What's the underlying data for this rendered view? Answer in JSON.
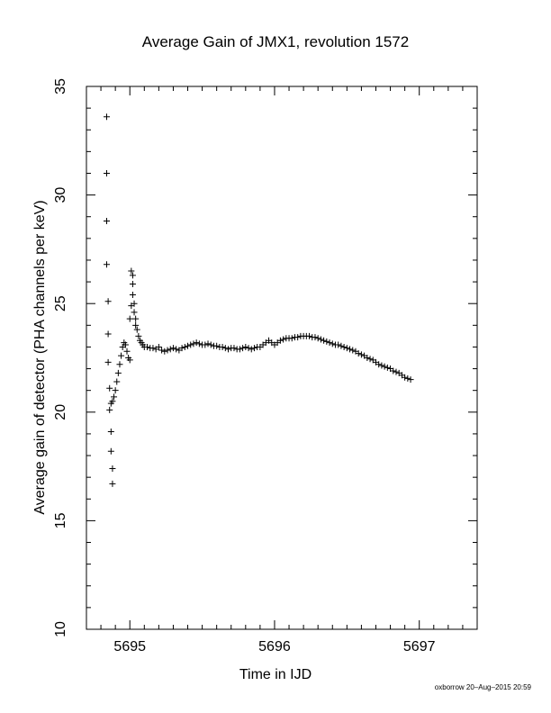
{
  "chart_data": {
    "type": "scatter",
    "title": "Average Gain of JMX1, revolution 1572",
    "xlabel": "Time in IJD",
    "ylabel": "Average gain of detector (PHA channels per keV)",
    "xlim": [
      5694.7,
      5697.4
    ],
    "ylim": [
      10,
      35
    ],
    "xticks": [
      5695,
      5696,
      5697
    ],
    "xtick_labels": [
      "5695",
      "5696",
      "5697"
    ],
    "yticks": [
      10,
      15,
      20,
      25,
      30,
      35
    ],
    "ytick_labels": [
      "10",
      "15",
      "20",
      "25",
      "30",
      "35"
    ],
    "grid": false,
    "legend": "none",
    "marker": "plus",
    "colors": {
      "marker": "#000000",
      "axes": "#000000",
      "background": "#ffffff"
    },
    "credit": "oxborrow 20–Aug–2015 20:59",
    "series": [
      {
        "x": [
          5694.84,
          5694.84,
          5694.84,
          5694.84,
          5694.85,
          5694.85,
          5694.85,
          5694.86,
          5694.86,
          5694.87,
          5694.87,
          5694.88,
          5694.88,
          5694.87,
          5694.88,
          5694.89,
          5694.9,
          5694.91,
          5694.92,
          5694.93,
          5694.94,
          5694.95,
          5694.96,
          5694.97,
          5694.98,
          5694.99,
          5695.0,
          5695.0,
          5695.01,
          5695.01,
          5695.02,
          5695.02,
          5695.02,
          5695.03,
          5695.03,
          5695.04,
          5695.04,
          5695.05,
          5695.06,
          5695.07,
          5695.08,
          5695.09,
          5695.1,
          5695.12,
          5695.14,
          5695.16,
          5695.18,
          5695.2,
          5695.22,
          5695.24,
          5695.26,
          5695.28,
          5695.3,
          5695.32,
          5695.34,
          5695.36,
          5695.38,
          5695.4,
          5695.42,
          5695.44,
          5695.46,
          5695.48,
          5695.5,
          5695.52,
          5695.54,
          5695.56,
          5695.58,
          5695.6,
          5695.62,
          5695.64,
          5695.66,
          5695.68,
          5695.7,
          5695.72,
          5695.74,
          5695.76,
          5695.78,
          5695.8,
          5695.82,
          5695.84,
          5695.86,
          5695.88,
          5695.9,
          5695.92,
          5695.94,
          5695.96,
          5695.98,
          5696.0,
          5696.02,
          5696.04,
          5696.06,
          5696.08,
          5696.1,
          5696.12,
          5696.14,
          5696.16,
          5696.18,
          5696.2,
          5696.22,
          5696.24,
          5696.26,
          5696.28,
          5696.3,
          5696.32,
          5696.34,
          5696.36,
          5696.38,
          5696.4,
          5696.42,
          5696.44,
          5696.46,
          5696.48,
          5696.5,
          5696.52,
          5696.54,
          5696.56,
          5696.58,
          5696.6,
          5696.62,
          5696.64,
          5696.66,
          5696.68,
          5696.7,
          5696.72,
          5696.74,
          5696.76,
          5696.78,
          5696.8,
          5696.82,
          5696.84,
          5696.86,
          5696.88,
          5696.9,
          5696.92,
          5696.94
        ],
        "y": [
          33.6,
          31.0,
          28.8,
          26.8,
          25.1,
          23.6,
          22.3,
          21.1,
          20.1,
          19.1,
          18.2,
          17.4,
          16.7,
          20.4,
          20.5,
          20.7,
          21.0,
          21.4,
          21.8,
          22.2,
          22.6,
          23.0,
          23.2,
          23.1,
          22.8,
          22.5,
          22.4,
          24.3,
          24.9,
          26.5,
          26.3,
          25.9,
          25.4,
          25.0,
          24.6,
          24.3,
          24.0,
          23.8,
          23.5,
          23.3,
          23.2,
          23.1,
          23.0,
          23.0,
          22.95,
          22.95,
          22.9,
          23.0,
          22.85,
          22.8,
          22.85,
          22.9,
          22.95,
          22.9,
          22.85,
          22.95,
          23.0,
          23.05,
          23.1,
          23.15,
          23.2,
          23.15,
          23.1,
          23.1,
          23.15,
          23.1,
          23.05,
          23.05,
          23.0,
          23.0,
          22.95,
          22.9,
          22.95,
          22.95,
          22.9,
          22.9,
          22.95,
          23.0,
          22.95,
          22.9,
          22.95,
          23.0,
          23.0,
          23.1,
          23.2,
          23.3,
          23.2,
          23.1,
          23.2,
          23.3,
          23.35,
          23.4,
          23.4,
          23.4,
          23.45,
          23.45,
          23.5,
          23.5,
          23.5,
          23.5,
          23.45,
          23.45,
          23.4,
          23.35,
          23.3,
          23.25,
          23.2,
          23.15,
          23.1,
          23.1,
          23.05,
          23.0,
          22.95,
          22.9,
          22.85,
          22.8,
          22.7,
          22.65,
          22.6,
          22.5,
          22.45,
          22.4,
          22.3,
          22.2,
          22.15,
          22.1,
          22.05,
          22.0,
          21.9,
          21.85,
          21.8,
          21.7,
          21.6,
          21.55,
          21.5
        ]
      }
    ]
  }
}
